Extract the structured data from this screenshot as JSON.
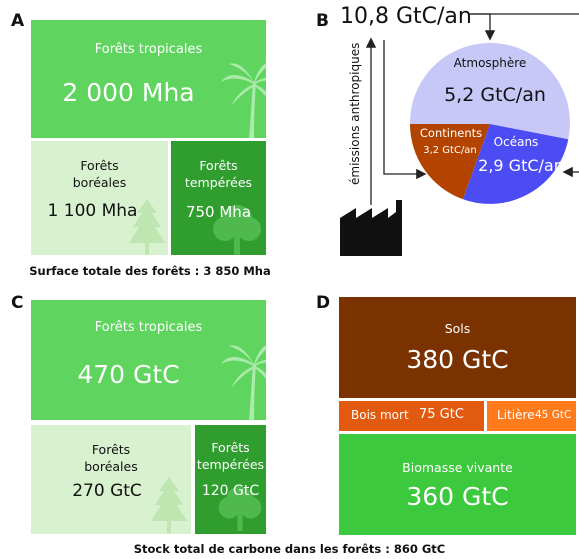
{
  "panel_a": {
    "letter": "A",
    "tropical_label": "Forêts tropicales",
    "tropical_value": "2 000 Mha",
    "boreal_label_line1": "Forêts",
    "boreal_label_line2": "boréales",
    "boreal_value": "1 100 Mha",
    "temperate_label_line1": "Forêts",
    "temperate_label_line2": "tempérées",
    "temperate_value": "750 Mha",
    "caption": "Surface totale des forêts : 3 850 Mha"
  },
  "panel_b": {
    "letter": "B",
    "total_emissions": "10,8 GtC/an",
    "anthropogenic_label": "émissions anthropiques",
    "atmosphere_label": "Atmosphère",
    "atmosphere_value": "5,2 GtC/an",
    "continents_label": "Continents",
    "continents_value": "3,2 GtC/an",
    "oceans_label": "Océans",
    "oceans_value": "2,9 GtC/an"
  },
  "panel_c": {
    "letter": "C",
    "tropical_label": "Forêts tropicales",
    "tropical_value": "470 GtC",
    "boreal_label_line1": "Forêts",
    "boreal_label_line2": "boréales",
    "boreal_value": "270 GtC",
    "temperate_label_line1": "Forêts",
    "temperate_label_line2": "tempérées",
    "temperate_value": "120 GtC"
  },
  "panel_d": {
    "letter": "D",
    "soils_label": "Sols",
    "soils_value": "380 GtC",
    "deadwood_label": "Bois mort",
    "deadwood_value": "75 GtC",
    "litter_label": "Litière",
    "litter_value": "45 GtC",
    "biomass_label": "Biomasse vivante",
    "biomass_value": "360 GtC"
  },
  "footer_caption": "Stock total de carbone dans les forêts : 860 GtC",
  "colors": {
    "tropical": "#5fd45f",
    "boreal": "#d8f2cf",
    "temperate": "#2f9e2f",
    "atmosphere": "#c8c8f8",
    "continents": "#b34400",
    "oceans": "#4c4cf5",
    "soils": "#7a3200",
    "deadwood": "#e25a10",
    "litter": "#ff7a1a",
    "biomass": "#3dc93d"
  }
}
